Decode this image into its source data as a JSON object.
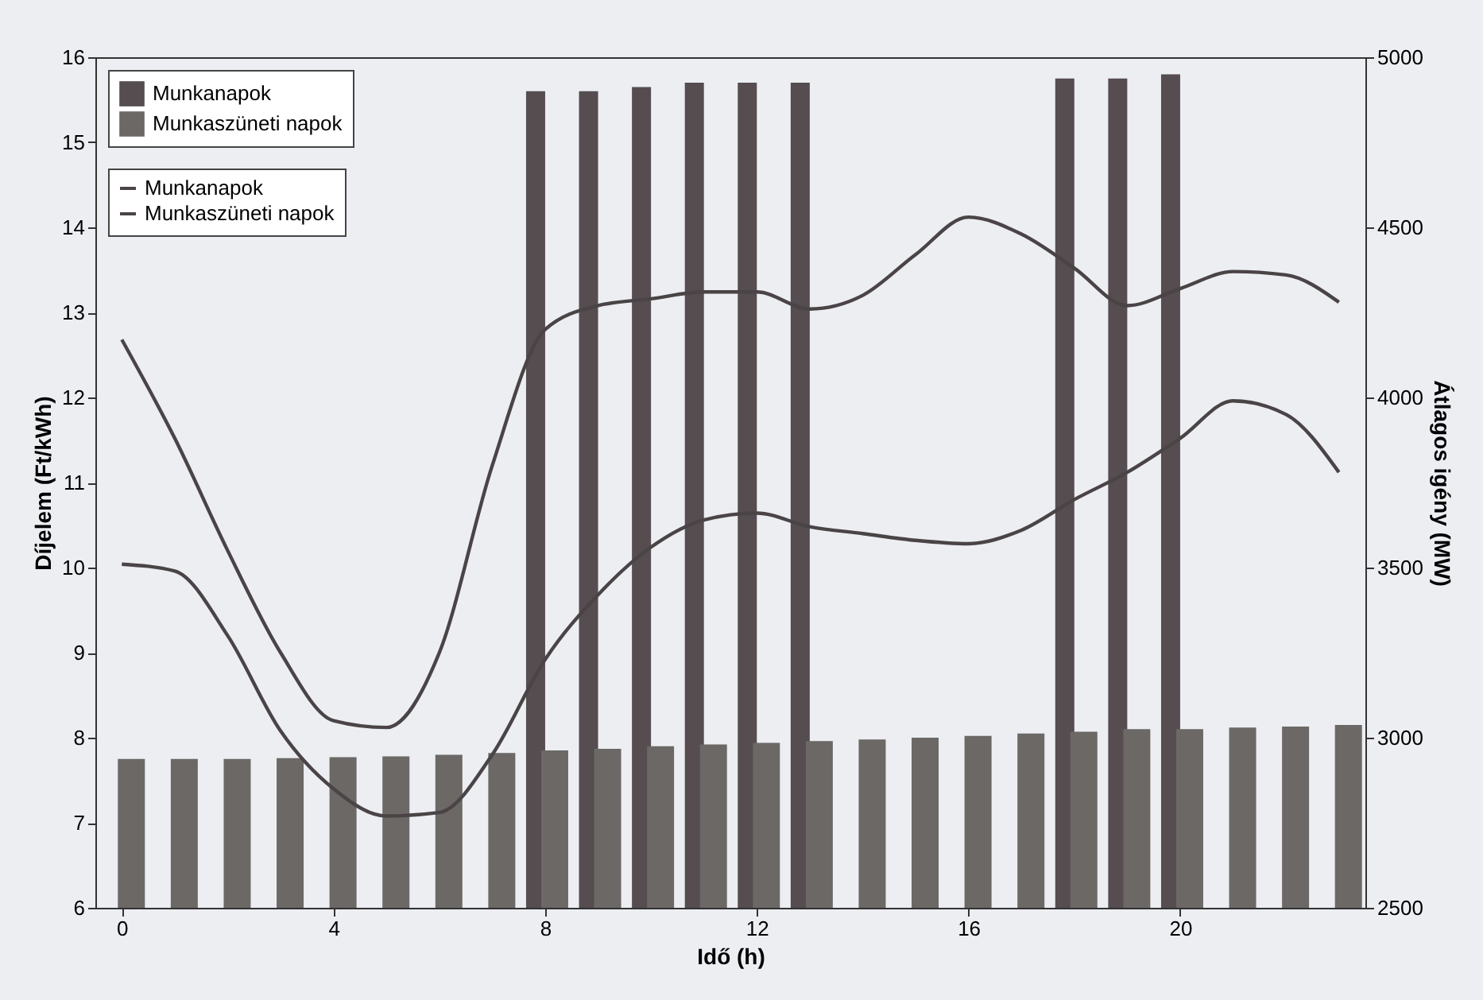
{
  "chart_data": {
    "type": "bar",
    "xlabel": "Idő (h)",
    "ylabel": "Díjelem (Ft/kWh)",
    "y2label": "Átlagos igény (MW)",
    "x": [
      0,
      1,
      2,
      3,
      4,
      5,
      6,
      7,
      8,
      9,
      10,
      11,
      12,
      13,
      14,
      15,
      16,
      17,
      18,
      19,
      20,
      21,
      22,
      23
    ],
    "xlim": [
      -0.5,
      23.5
    ],
    "xticks": [
      0,
      4,
      8,
      12,
      16,
      20
    ],
    "ylim": [
      6,
      16
    ],
    "yticks": [
      6,
      7,
      8,
      9,
      10,
      11,
      12,
      13,
      14,
      15,
      16
    ],
    "y2lim": [
      2500,
      5000
    ],
    "y2ticks": [
      2500,
      3000,
      3500,
      4000,
      4500,
      5000
    ],
    "legend": "top left",
    "grid": false,
    "marker": "none",
    "line_style": "solid",
    "series": [
      {
        "name": "Munkanapok",
        "color": "#554d50",
        "values": [
          null,
          null,
          null,
          null,
          null,
          null,
          null,
          null,
          15.6,
          15.6,
          15.65,
          15.7,
          15.7,
          15.7,
          null,
          null,
          null,
          null,
          15.75,
          15.75,
          15.8,
          null,
          null,
          null
        ]
      },
      {
        "name": "Munkaszüneti napok",
        "color": "#6b6866",
        "values": [
          7.75,
          7.75,
          7.75,
          7.76,
          7.77,
          7.78,
          7.8,
          7.82,
          7.85,
          7.87,
          7.9,
          7.92,
          7.94,
          7.96,
          7.98,
          8.0,
          8.02,
          8.05,
          8.07,
          8.1,
          8.1,
          8.12,
          8.13,
          8.15
        ]
      },
      {
        "name": "Munkanapok",
        "type": "line",
        "axis": "y2",
        "color": "#4a4446",
        "values": [
          4170,
          3880,
          3550,
          3250,
          3050,
          3030,
          3250,
          3800,
          4200,
          4270,
          4290,
          4310,
          4310,
          4260,
          4300,
          4420,
          4530,
          4480,
          4380,
          4270,
          4320,
          4370,
          4360,
          4280
        ]
      },
      {
        "name": "Munkaszüneti napok",
        "type": "line",
        "axis": "y2",
        "color": "#4a4446",
        "values": [
          3510,
          3490,
          3300,
          3020,
          2850,
          2770,
          2780,
          2950,
          3230,
          3420,
          3560,
          3640,
          3660,
          3620,
          3600,
          3580,
          3570,
          3610,
          3700,
          3780,
          3880,
          3990,
          3950,
          3780
        ]
      }
    ]
  }
}
